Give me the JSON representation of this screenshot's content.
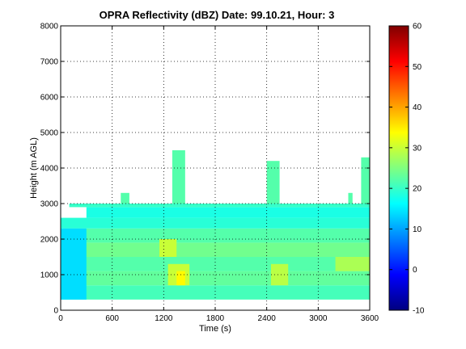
{
  "chart_data": {
    "type": "heatmap",
    "title": "OPRA Reflectivity (dBZ)  Date: 99.10.21, Hour: 3",
    "xlabel": "Time (s)",
    "ylabel": "Height (m AGL)",
    "xlim": [
      0,
      3600
    ],
    "ylim": [
      0,
      8000
    ],
    "x_ticks": [
      "0",
      "600",
      "1200",
      "1800",
      "2400",
      "3000",
      "3600"
    ],
    "y_ticks": [
      "0",
      "1000",
      "2000",
      "3000",
      "4000",
      "5000",
      "6000",
      "7000",
      "8000"
    ],
    "grid": true,
    "colorbar": {
      "range": [
        -10,
        60
      ],
      "ticks": [
        "-10",
        "0",
        "10",
        "20",
        "30",
        "40",
        "50",
        "60"
      ],
      "colormap": "jet"
    },
    "layers": [
      {
        "y0": 300,
        "y1": 700,
        "x0": 0,
        "x1": 3600,
        "dbz": 21
      },
      {
        "y0": 700,
        "y1": 1100,
        "x0": 0,
        "x1": 3600,
        "dbz": 23
      },
      {
        "y0": 1100,
        "y1": 1500,
        "x0": 0,
        "x1": 3600,
        "dbz": 22
      },
      {
        "y0": 1500,
        "y1": 1900,
        "x0": 0,
        "x1": 3600,
        "dbz": 24
      },
      {
        "y0": 1900,
        "y1": 2300,
        "x0": 0,
        "x1": 3600,
        "dbz": 22
      },
      {
        "y0": 2300,
        "y1": 2600,
        "x0": 0,
        "x1": 3600,
        "dbz": 19
      },
      {
        "y0": 2600,
        "y1": 2900,
        "x0": 300,
        "x1": 3600,
        "dbz": 18
      },
      {
        "y0": 2900,
        "y1": 3000,
        "x0": 100,
        "x1": 3600,
        "dbz": 20
      }
    ],
    "features": [
      {
        "x0": 0,
        "x1": 300,
        "y0": 300,
        "y1": 2300,
        "dbz": 14
      },
      {
        "x0": 1250,
        "x1": 1500,
        "y0": 700,
        "y1": 1300,
        "dbz": 30
      },
      {
        "x0": 1350,
        "x1": 1450,
        "y0": 700,
        "y1": 1100,
        "dbz": 34
      },
      {
        "x0": 1150,
        "x1": 1350,
        "y0": 1500,
        "y1": 2000,
        "dbz": 30
      },
      {
        "x0": 2450,
        "x1": 2650,
        "y0": 700,
        "y1": 1300,
        "dbz": 29
      },
      {
        "x0": 3200,
        "x1": 3600,
        "y0": 1100,
        "y1": 1500,
        "dbz": 28
      },
      {
        "x0": 1300,
        "x1": 1450,
        "y0": 3000,
        "y1": 4500,
        "dbz": 22
      },
      {
        "x0": 2400,
        "x1": 2550,
        "y0": 3000,
        "y1": 4200,
        "dbz": 22
      },
      {
        "x0": 3500,
        "x1": 3600,
        "y0": 3000,
        "y1": 4300,
        "dbz": 22
      },
      {
        "x0": 3350,
        "x1": 3400,
        "y0": 3000,
        "y1": 3300,
        "dbz": 22
      },
      {
        "x0": 700,
        "x1": 800,
        "y0": 3000,
        "y1": 3300,
        "dbz": 22
      }
    ]
  }
}
